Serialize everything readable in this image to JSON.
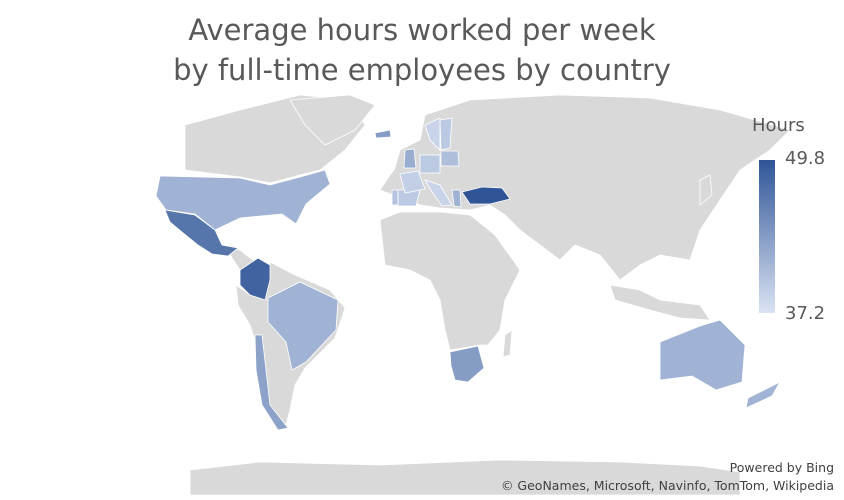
{
  "chart_data": {
    "type": "map",
    "title_line1": "Average hours worked per week",
    "title_line2": "by full-time employees by country",
    "legend": {
      "title": "Hours",
      "max": 49.8,
      "min": 37.2,
      "max_label": "49.8",
      "min_label": "37.2",
      "placement": "right"
    },
    "colors": {
      "min": "#dbe3f3",
      "max": "#2f5597",
      "no_data": "#d9d9d9",
      "border": "#ffffff"
    },
    "countries": [
      {
        "name": "Turkey",
        "value": 49.8
      },
      {
        "name": "Colombia",
        "value": 48.5
      },
      {
        "name": "Mexico",
        "value": 47.0
      },
      {
        "name": "South Africa",
        "value": 43.5
      },
      {
        "name": "Chile",
        "value": 43.0
      },
      {
        "name": "Iceland",
        "value": 43.5
      },
      {
        "name": "United States",
        "value": 41.5
      },
      {
        "name": "Brazil",
        "value": 41.5
      },
      {
        "name": "Australia",
        "value": 41.5
      },
      {
        "name": "New Zealand",
        "value": 41.5
      },
      {
        "name": "United Kingdom",
        "value": 42.0
      },
      {
        "name": "Greece",
        "value": 41.5
      },
      {
        "name": "Poland",
        "value": 40.5
      },
      {
        "name": "Portugal",
        "value": 40.0
      },
      {
        "name": "Spain",
        "value": 39.5
      },
      {
        "name": "France",
        "value": 39.0
      },
      {
        "name": "Germany",
        "value": 39.5
      },
      {
        "name": "Italy",
        "value": 38.5
      },
      {
        "name": "Sweden",
        "value": 39.5
      },
      {
        "name": "Norway",
        "value": 38.5
      }
    ]
  },
  "credits": {
    "powered_by": "Powered by Bing",
    "sources": "© GeoNames, Microsoft, Navinfo, TomTom, Wikipedia"
  }
}
